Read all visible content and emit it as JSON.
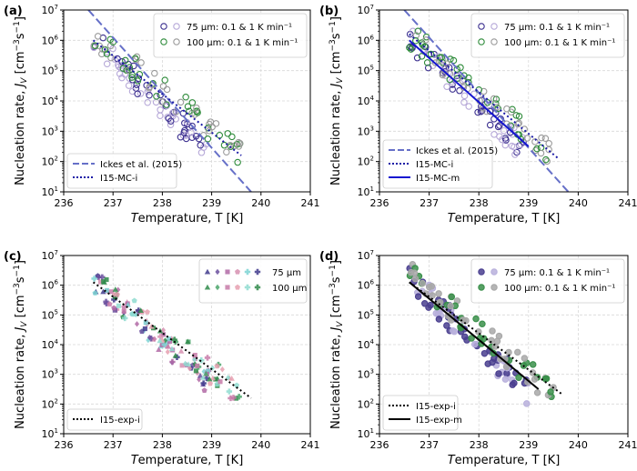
{
  "figure": {
    "panels": [
      "a",
      "b",
      "c",
      "d"
    ]
  },
  "chart_data": [
    {
      "type": "scatter",
      "panel_label": "(a)",
      "xlabel": "Temperature, T [K]",
      "ylabel": "Nucleation rate, J_V [cm^-3 s^-1]",
      "xlim": [
        236,
        241
      ],
      "ylim_log10": [
        1,
        7
      ],
      "xticks": [
        "236",
        "237",
        "238",
        "239",
        "240",
        "241"
      ],
      "yticks": [
        "10^1",
        "10^2",
        "10^3",
        "10^4",
        "10^5",
        "10^6",
        "10^7"
      ],
      "grid": true,
      "legend_top": [
        "75 μm: 0.1 & 1 K min⁻¹",
        "100 μm: 0.1 & 1 K min⁻¹"
      ],
      "legend_bottom": [
        "Ickes et al. (2015)",
        "I15-MC-i"
      ],
      "series": [
        {
          "name": "Ickes et al. (2015)",
          "style": "dashed",
          "color": "#6670c8",
          "x": [
            236.5,
            239.8
          ],
          "log10y": [
            7.0,
            1.0
          ]
        },
        {
          "name": "I15-MC-i",
          "style": "dotted",
          "color": "#1a1aa6",
          "x": [
            236.6,
            239.6
          ],
          "log10y": [
            6.0,
            2.2
          ]
        },
        {
          "name": "75 μm: 0.1 & 1 K min⁻¹",
          "marker": "open-circle",
          "colors": [
            "#3b2f8f",
            "#b6a8d8"
          ],
          "x_range": [
            236.6,
            238.9
          ],
          "log10y_end": [
            6.0,
            2.4
          ]
        },
        {
          "name": "100 μm: 0.1 & 1 K min⁻¹",
          "marker": "open-circle",
          "colors": [
            "#2e8b3a",
            "#9a9a9a"
          ],
          "x_range": [
            236.6,
            239.6
          ],
          "log10y_end": [
            6.2,
            2.3
          ]
        }
      ]
    },
    {
      "type": "scatter",
      "panel_label": "(b)",
      "xlabel": "Temperature, T [K]",
      "ylabel": "Nucleation rate, J_V [cm^-3 s^-1]",
      "xlim": [
        236,
        241
      ],
      "ylim_log10": [
        1,
        7
      ],
      "xticks": [
        "236",
        "237",
        "238",
        "239",
        "240",
        "241"
      ],
      "yticks": [
        "10^1",
        "10^2",
        "10^3",
        "10^4",
        "10^5",
        "10^6",
        "10^7"
      ],
      "grid": true,
      "legend_top": [
        "75 μm: 0.1 & 1 K min⁻¹",
        "100 μm: 0.1 & 1 K min⁻¹"
      ],
      "legend_bottom": [
        "Ickes et al. (2015)",
        "I15-MC-i",
        "I15-MC-m"
      ],
      "series": [
        {
          "name": "Ickes et al. (2015)",
          "style": "dashed",
          "color": "#6670c8",
          "x": [
            236.5,
            239.8
          ],
          "log10y": [
            7.0,
            1.0
          ]
        },
        {
          "name": "I15-MC-i",
          "style": "dotted",
          "color": "#1a1aa6",
          "x": [
            236.6,
            239.6
          ],
          "log10y": [
            6.2,
            2.1
          ]
        },
        {
          "name": "I15-MC-m",
          "style": "solid",
          "color": "#1515d0",
          "x": [
            236.6,
            239.0
          ],
          "log10y": [
            6.0,
            2.5
          ]
        },
        {
          "name": "75 μm: 0.1 & 1 K min⁻¹",
          "marker": "open-circle",
          "colors": [
            "#3b2f8f",
            "#b6a8d8"
          ],
          "x_range": [
            236.6,
            238.9
          ],
          "log10y_end": [
            6.0,
            2.4
          ]
        },
        {
          "name": "100 μm: 0.1 & 1 K min⁻¹",
          "marker": "open-circle",
          "colors": [
            "#2e8b3a",
            "#9a9a9a"
          ],
          "x_range": [
            236.6,
            239.6
          ],
          "log10y_end": [
            6.2,
            2.1
          ]
        }
      ]
    },
    {
      "type": "scatter",
      "panel_label": "(c)",
      "xlabel": "Temperature, T [K]",
      "ylabel": "Nucleation rate, J_V [cm^-3 s^-1]",
      "xlim": [
        236,
        241
      ],
      "ylim_log10": [
        1,
        7
      ],
      "xticks": [
        "236",
        "237",
        "238",
        "239",
        "240",
        "241"
      ],
      "yticks": [
        "10^1",
        "10^2",
        "10^3",
        "10^4",
        "10^5",
        "10^6",
        "10^7"
      ],
      "grid": true,
      "legend_top": [
        "75 μm",
        "100 μm"
      ],
      "legend_bottom": [
        "I15-exp-i"
      ],
      "series": [
        {
          "name": "I15-exp-i",
          "style": "dotted",
          "color": "#000000",
          "x": [
            236.6,
            239.8
          ],
          "log10y": [
            6.1,
            2.2
          ]
        },
        {
          "name": "75 μm",
          "marker": "mixed (triangle, diamond, square, pentagon, plus)",
          "colors": [
            "#3f3a8c",
            "#6a4f9e",
            "#b26aa6",
            "#d68fb0",
            "#7dd3d3"
          ],
          "x_range": [
            236.6,
            239.0
          ],
          "log10y_end": [
            6.2,
            2.6
          ]
        },
        {
          "name": "100 μm",
          "marker": "mixed (triangle, diamond, square, pentagon, plus)",
          "colors": [
            "#2f8a4a",
            "#4aa56a",
            "#c77aa8",
            "#e6a0b0",
            "#8fdcd0"
          ],
          "x_range": [
            236.7,
            239.6
          ],
          "log10y_end": [
            6.0,
            2.3
          ]
        }
      ]
    },
    {
      "type": "scatter",
      "panel_label": "(d)",
      "xlabel": "Temperature, T [K]",
      "ylabel": "Nucleation rate, J_V [cm^-3 s^-1]",
      "xlim": [
        236,
        241
      ],
      "ylim_log10": [
        1,
        7
      ],
      "xticks": [
        "236",
        "237",
        "238",
        "239",
        "240",
        "241"
      ],
      "yticks": [
        "10^1",
        "10^2",
        "10^3",
        "10^4",
        "10^5",
        "10^6",
        "10^7"
      ],
      "grid": true,
      "legend_top": [
        "75 μm: 0.1 & 1 K min⁻¹",
        "100 μm: 0.1 & 1 K min⁻¹"
      ],
      "legend_bottom": [
        "I15-exp-i",
        "I15-exp-m"
      ],
      "series": [
        {
          "name": "I15-exp-i",
          "style": "dotted",
          "color": "#000000",
          "x": [
            236.6,
            239.7
          ],
          "log10y": [
            6.1,
            2.3
          ]
        },
        {
          "name": "I15-exp-m",
          "style": "solid",
          "color": "#000000",
          "x": [
            236.6,
            239.2
          ],
          "log10y": [
            6.1,
            2.5
          ]
        },
        {
          "name": "75 μm: 0.1 & 1 K min⁻¹",
          "marker": "filled-circle",
          "colors": [
            "#4a3f8f",
            "#b8b0dc"
          ],
          "x_range": [
            236.6,
            239.0
          ],
          "log10y_end": [
            6.2,
            2.4
          ]
        },
        {
          "name": "100 μm: 0.1 & 1 K min⁻¹",
          "marker": "filled-circle",
          "colors": [
            "#3a8f4a",
            "#a8a8a8"
          ],
          "x_range": [
            236.6,
            239.6
          ],
          "log10y_end": [
            6.4,
            2.2
          ]
        }
      ]
    }
  ]
}
